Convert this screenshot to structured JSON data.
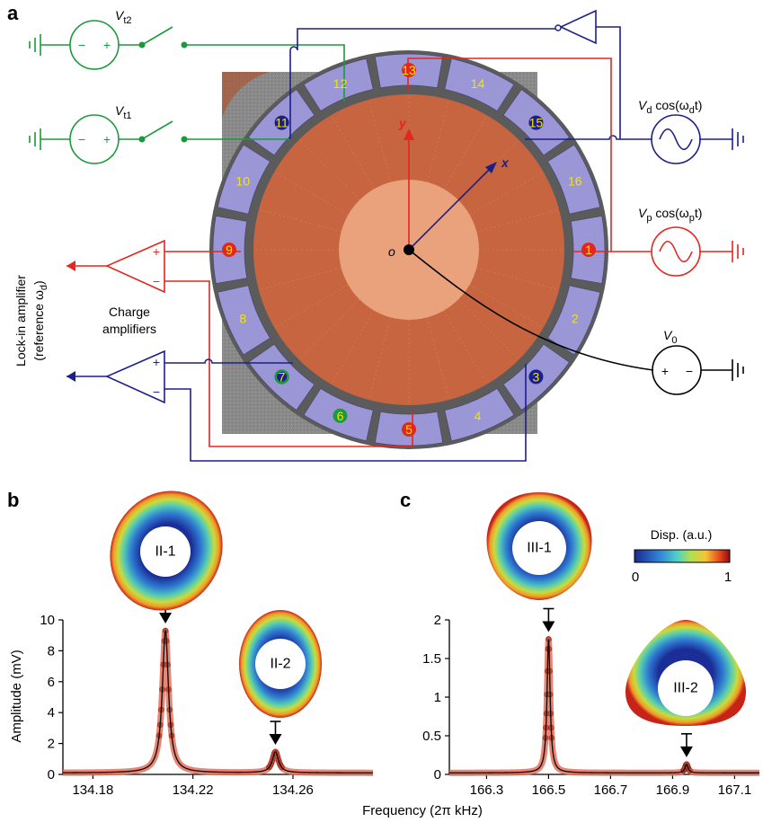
{
  "panels": {
    "a": "a",
    "b": "b",
    "c": "c"
  },
  "diagram": {
    "sources": {
      "vt2": "V",
      "vt2_sub": "t2",
      "vt1": "V",
      "vt1_sub": "t1",
      "vd": "V",
      "vd_sub": "d",
      "vd_tail": " cos(ω",
      "vd_tail_sub": "d",
      "vd_end": "t)",
      "vp": "V",
      "vp_sub": "p",
      "vp_tail": " cos(ω",
      "vp_tail_sub": "p",
      "vp_end": "t)",
      "v0": "V",
      "v0_sub": "0",
      "plus": "+",
      "minus": "−"
    },
    "segments": [
      "1",
      "2",
      "3",
      "4",
      "5",
      "6",
      "7",
      "8",
      "9",
      "10",
      "11",
      "12",
      "13",
      "14",
      "15",
      "16"
    ],
    "axes": {
      "x": "x",
      "y": "y",
      "origin": "o"
    },
    "amplifier_label_1": "Charge",
    "amplifier_label_2": "amplifiers",
    "lockin_label_1": "Lock-in amplifier",
    "lockin_label_2": "(reference ω",
    "lockin_label_sub": "d",
    "lockin_label_end": ")",
    "colors": {
      "green": "#1a9a3a",
      "red": "#e3261e",
      "blue": "#1c1f8a",
      "electrode": "#9b97d6",
      "disk": "#c6653f",
      "center": "#e9a27c"
    }
  },
  "chart_data": [
    {
      "type": "line",
      "panel": "b",
      "xlabel": "Frequency (2π kHz)",
      "ylabel": "Amplitude (mV)",
      "xlim": [
        134.168,
        134.292
      ],
      "ylim": [
        0,
        10
      ],
      "x_ticks": [
        "134.18",
        "134.22",
        "134.26"
      ],
      "x_tick_values": [
        134.18,
        134.22,
        134.26
      ],
      "y_ticks": [
        "0",
        "2",
        "4",
        "6",
        "8",
        "10"
      ],
      "y_tick_values": [
        0,
        2,
        4,
        6,
        8,
        10
      ],
      "peaks": [
        {
          "mode": "II-1",
          "x": 134.209,
          "y": 9.3,
          "width": 0.0015
        },
        {
          "mode": "II-2",
          "x": 134.253,
          "y": 1.45,
          "width": 0.0015
        }
      ],
      "baseline": 0.1
    },
    {
      "type": "line",
      "panel": "c",
      "xlabel": "",
      "ylabel": "",
      "xlim": [
        166.18,
        167.18
      ],
      "ylim": [
        0,
        2
      ],
      "x_ticks": [
        "166.3",
        "166.5",
        "166.7",
        "166.9",
        "167.1"
      ],
      "x_tick_values": [
        166.3,
        166.5,
        166.7,
        166.9,
        167.1
      ],
      "y_ticks": [
        "0",
        "0.5",
        "1",
        "1.5",
        "2"
      ],
      "y_tick_values": [
        0,
        0.5,
        1,
        1.5,
        2
      ],
      "peaks": [
        {
          "mode": "III-1",
          "x": 166.5,
          "y": 1.75,
          "width": 0.006
        },
        {
          "mode": "III-2",
          "x": 166.945,
          "y": 0.13,
          "width": 0.006
        }
      ],
      "baseline": 0.02
    }
  ],
  "colorbar": {
    "title": "Disp. (a.u.)",
    "min": "0",
    "max": "1"
  }
}
